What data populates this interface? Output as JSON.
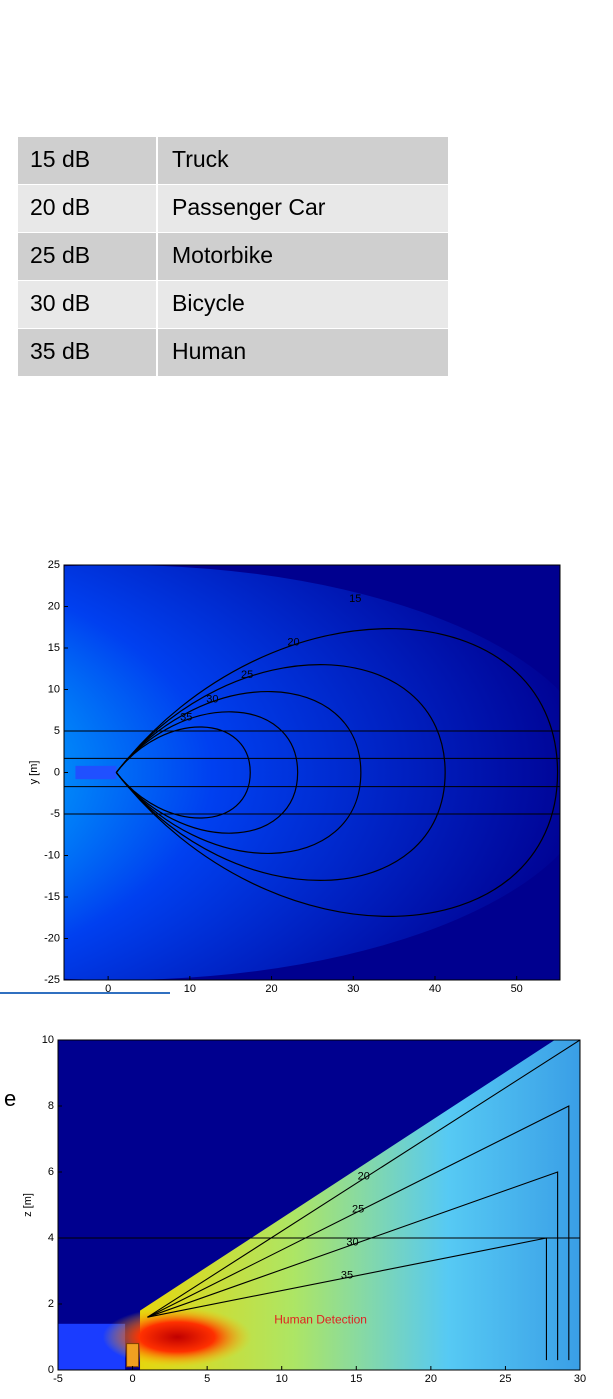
{
  "table": {
    "rows": [
      [
        "15 dB",
        "Truck"
      ],
      [
        "20 dB",
        "Passenger Car"
      ],
      [
        "25 dB",
        "Motorbike"
      ],
      [
        "30 dB",
        "Bicycle"
      ],
      [
        "35 dB",
        "Human"
      ]
    ]
  },
  "side_text": "e",
  "chart_data": [
    {
      "type": "contour",
      "ylabel": "y [m]",
      "xlim": [
        -5.4,
        55.3
      ],
      "ylim": [
        -25,
        25
      ],
      "xticks": [
        0,
        10,
        20,
        30,
        40,
        50
      ],
      "yticks": [
        -25,
        -20,
        -15,
        -10,
        -5,
        0,
        5,
        10,
        15,
        20,
        25
      ],
      "levels": [
        15,
        20,
        25,
        30,
        35
      ]
    },
    {
      "type": "wedge",
      "ylabel": "z [m]",
      "xlim": [
        -5,
        30
      ],
      "ylim": [
        0,
        10
      ],
      "xticks": [
        -5,
        0,
        5,
        10,
        15,
        20,
        25,
        30
      ],
      "yticks": [
        0,
        2,
        4,
        6,
        8,
        10
      ],
      "levels": [
        20,
        25,
        30,
        35
      ],
      "annotation": "Human Detection"
    }
  ]
}
